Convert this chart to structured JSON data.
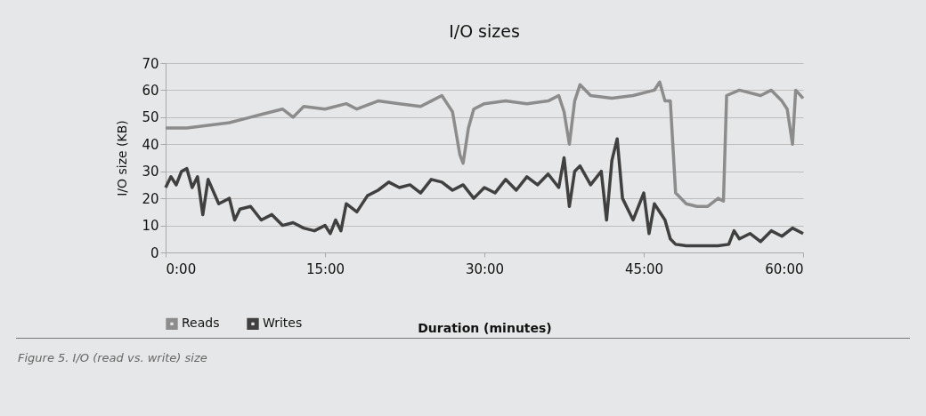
{
  "chart_data": {
    "type": "line",
    "title": "I/O sizes",
    "xlabel": "Duration (minutes)",
    "ylabel": "I/O size (KB)",
    "annotations": [
      "Figure 5. I/O (read vs. write) size"
    ],
    "xlim": [
      0,
      60
    ],
    "xticks": [
      {
        "value": 0,
        "label": "0:00"
      },
      {
        "value": 15,
        "label": "15:00"
      },
      {
        "value": 30,
        "label": "30:00"
      },
      {
        "value": 45,
        "label": "45:00"
      },
      {
        "value": 60,
        "label": "60:00"
      }
    ],
    "ylim": [
      0,
      70
    ],
    "yticks": [
      0,
      10,
      20,
      30,
      40,
      50,
      60,
      70
    ],
    "grid": "y",
    "legend": "bottom",
    "series": [
      {
        "name": "Reads",
        "color": "#8c8c8c",
        "x": [
          0,
          2,
          4,
          6,
          8,
          9,
          10,
          11,
          12,
          13,
          15,
          17,
          18,
          20,
          22,
          24,
          25,
          26,
          26.5,
          27,
          27.7,
          28,
          28.5,
          29,
          30,
          32,
          34,
          36,
          37,
          37.5,
          38,
          38.5,
          39,
          40,
          42,
          44,
          46,
          46.5,
          47,
          47.5,
          48,
          49,
          50,
          51,
          52,
          52.5,
          52.8,
          54,
          56,
          57,
          58,
          58.5,
          59,
          59.3,
          60
        ],
        "values": [
          46,
          46,
          47,
          48,
          50,
          51,
          52,
          53,
          50,
          54,
          53,
          55,
          53,
          56,
          55,
          54,
          56,
          58,
          55,
          52,
          36,
          33,
          46,
          53,
          55,
          56,
          55,
          56,
          58,
          52,
          40,
          56,
          62,
          58,
          57,
          58,
          60,
          63,
          56,
          56,
          22,
          18,
          17,
          17,
          20,
          19,
          58,
          60,
          58,
          60,
          56,
          53,
          40,
          60,
          57
        ]
      },
      {
        "name": "Writes",
        "color": "#404040",
        "x": [
          0,
          0.5,
          1,
          1.5,
          2,
          2.5,
          3,
          3.5,
          4,
          5,
          6,
          6.5,
          7,
          8,
          9,
          10,
          11,
          12,
          13,
          14,
          15,
          15.5,
          16,
          16.5,
          17,
          18,
          19,
          20,
          21,
          22,
          23,
          24,
          25,
          26,
          27,
          28,
          29,
          30,
          31,
          32,
          33,
          34,
          35,
          36,
          37,
          37.5,
          38,
          38.5,
          39,
          40,
          41,
          41.5,
          42,
          42.5,
          43,
          44,
          45,
          45.5,
          46,
          47,
          47.5,
          48,
          49,
          50,
          52,
          53,
          53.5,
          54,
          55,
          56,
          57,
          58,
          59,
          60
        ],
        "values": [
          24,
          28,
          25,
          30,
          31,
          24,
          28,
          14,
          27,
          18,
          20,
          12,
          16,
          17,
          12,
          14,
          10,
          11,
          9,
          8,
          10,
          7,
          12,
          8,
          18,
          15,
          21,
          23,
          26,
          24,
          25,
          22,
          27,
          26,
          23,
          25,
          20,
          24,
          22,
          27,
          23,
          28,
          25,
          29,
          24,
          35,
          17,
          30,
          32,
          25,
          30,
          12,
          34,
          42,
          20,
          12,
          22,
          7,
          18,
          12,
          5,
          3,
          2.5,
          2.5,
          2.5,
          3,
          8,
          5,
          7,
          4,
          8,
          6,
          9,
          7
        ]
      }
    ]
  }
}
